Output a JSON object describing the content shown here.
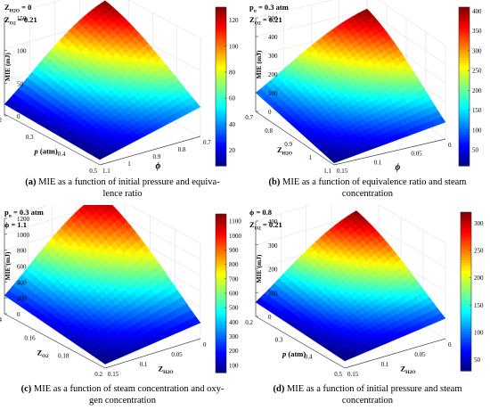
{
  "chart_data": [
    {
      "type": "surface",
      "panel_label": "(a)",
      "caption": "MIE as a function of initial pressure and equiva-lence ratio",
      "caption_lines": [
        "MIE as a function of initial pressure and equiva-",
        "lence ratio"
      ],
      "annotations": [
        "Zₕ₂ₒ = 0",
        "Zₒ₂ = 0.21"
      ],
      "annot_main": [
        "Z",
        "Z"
      ],
      "annot_sub": [
        "H2O",
        "O2"
      ],
      "annot_val": [
        "= 0",
        "= 0.21"
      ],
      "zlabel": "MIE (mJ)",
      "xlabel": "p (atm)",
      "xlabel_main": "p",
      "xlabel_rest": " (atm)",
      "ylabel": "ϕ",
      "x_ticks": [
        "0.2",
        "0.3",
        "0.4",
        "0.5"
      ],
      "y_ticks": [
        "0.7",
        "0.8",
        "0.9",
        "1",
        "1.1"
      ],
      "z_ticks": [
        "0",
        "50",
        "100",
        "150"
      ],
      "zlim": [
        0,
        150
      ],
      "colorbar_ticks": [
        "20",
        "40",
        "60",
        "80",
        "100",
        "120"
      ],
      "colorbar_range": [
        8,
        130
      ],
      "corner_values": {
        "front": 8,
        "left": 15,
        "right": 45,
        "back": 130
      }
    },
    {
      "type": "surface",
      "panel_label": "(b)",
      "caption_lines": [
        "MIE as a function of equivalence ratio and steam",
        "concentration"
      ],
      "annot_main": [
        "p",
        "Z"
      ],
      "annot_sub": [
        "u",
        "O2"
      ],
      "annot_val": [
        "= 0.3 atm",
        "= 0.21"
      ],
      "zlabel": "MIE (mJ)",
      "xlabel_main": "Z",
      "xlabel_sub": "H2O",
      "ylabel": "ϕ",
      "x_ticks": [
        "0.7",
        "0.8",
        "0.9",
        "1",
        "1.1"
      ],
      "y_ticks": [
        "0",
        "0.05",
        "0.1",
        "0.15"
      ],
      "z_ticks": [
        "0",
        "100",
        "200",
        "300",
        "400",
        "500"
      ],
      "zlim": [
        0,
        500
      ],
      "colorbar_ticks": [
        "50",
        "100",
        "150",
        "200",
        "250",
        "300",
        "350",
        "400"
      ],
      "colorbar_range": [
        10,
        410
      ],
      "corner_values": {
        "front": 10,
        "left": 100,
        "right": 90,
        "back": 410
      }
    },
    {
      "type": "surface",
      "panel_label": "(c)",
      "caption_lines": [
        "MIE as a function of steam concentration and oxy-",
        "gen concentration"
      ],
      "annot_main": [
        "p",
        "ϕ"
      ],
      "annot_sub": [
        "u",
        ""
      ],
      "annot_val": [
        "= 0.3 atm",
        "= 1.1"
      ],
      "zlabel": "MIE (mJ)",
      "xlabel_main": "Z",
      "xlabel_sub": "O2",
      "ylabel_main": "Z",
      "ylabel_sub": "H2O",
      "x_ticks": [
        "0.14",
        "0.16",
        "0.18",
        "0.2"
      ],
      "y_ticks": [
        "0",
        "0.05",
        "0.1",
        "0.15"
      ],
      "z_ticks": [
        "0",
        "200",
        "400",
        "600",
        "800",
        "1000",
        "1200"
      ],
      "zlim": [
        0,
        1200
      ],
      "colorbar_ticks": [
        "100",
        "200",
        "300",
        "400",
        "500",
        "600",
        "700",
        "800",
        "900",
        "1000",
        "1100"
      ],
      "colorbar_range": [
        50,
        1150
      ],
      "corner_values": {
        "front": 50,
        "left": 230,
        "right": 200,
        "back": 1150
      }
    },
    {
      "type": "surface",
      "panel_label": "(d)",
      "caption_lines": [
        "MIE as a function of initial pressure and steam",
        "concentration"
      ],
      "annot_main": [
        "ϕ",
        "Z"
      ],
      "annot_sub": [
        "",
        "O2"
      ],
      "annot_val": [
        "= 0.8",
        "= 0.21"
      ],
      "zlabel": "MIE (mJ)",
      "xlabel_main": "p",
      "xlabel_rest": " (atm)",
      "ylabel_main": "Z",
      "ylabel_sub": "H2O",
      "x_ticks": [
        "0.2",
        "0.3",
        "0.4",
        "0.5"
      ],
      "y_ticks": [
        "0",
        "0.05",
        "0.1",
        "0.15"
      ],
      "z_ticks": [
        "0",
        "100",
        "200",
        "300",
        "400"
      ],
      "zlim": [
        0,
        400
      ],
      "colorbar_ticks": [
        "50",
        "100",
        "150",
        "200",
        "250",
        "300"
      ],
      "colorbar_range": [
        30,
        320
      ],
      "corner_values": {
        "front": 30,
        "left": 60,
        "right": 85,
        "back": 320
      }
    }
  ],
  "captions": {
    "a_tag": "(a)",
    "a_l1": "MIE as a function of initial pressure and equiva-",
    "a_l2": "lence ratio",
    "b_tag": "(b)",
    "b_l1": "MIE as a function of equivalence ratio and steam",
    "b_l2": "concentration",
    "c_tag": "(c)",
    "c_l1": "MIE as a function of steam concentration and oxy-",
    "c_l2": "gen concentration",
    "d_tag": "(d)",
    "d_l1": "MIE as a function of initial pressure and steam",
    "d_l2": "concentration"
  }
}
